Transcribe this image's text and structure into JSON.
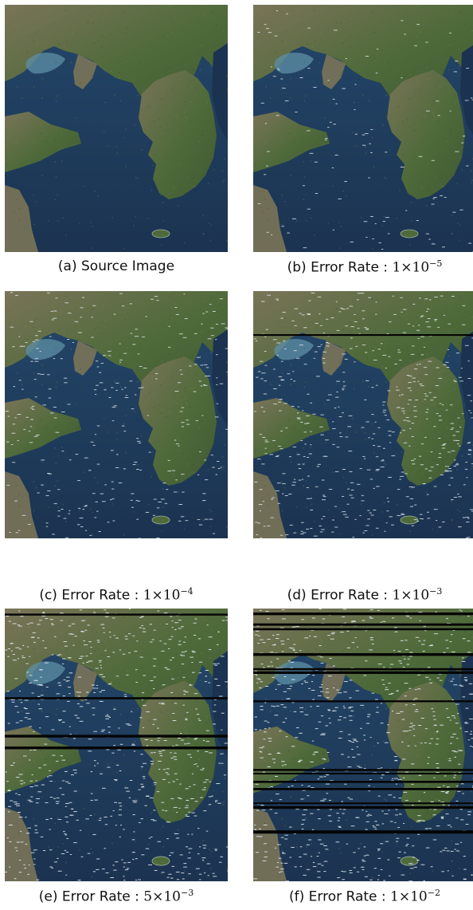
{
  "panels": [
    {
      "letter": "(a)",
      "label": "Source Image",
      "mantissa": "",
      "exponent": "",
      "artifact_lines": 0,
      "noise_level": 0
    },
    {
      "letter": "(b)",
      "label": "Error Rate :",
      "mantissa": "1",
      "exponent": "−5",
      "artifact_lines": 0,
      "noise_level": 1e-05
    },
    {
      "letter": "(c)",
      "label": "Error Rate :",
      "mantissa": "1",
      "exponent": "−4",
      "artifact_lines": 0,
      "noise_level": 0.0001
    },
    {
      "letter": "(d)",
      "label": "Error Rate :",
      "mantissa": "1",
      "exponent": "−3",
      "artifact_lines": 1,
      "noise_level": 0.001
    },
    {
      "letter": "(e)",
      "label": "Error Rate :",
      "mantissa": "5",
      "exponent": "−3",
      "artifact_lines": 4,
      "noise_level": 0.005
    },
    {
      "letter": "(f)",
      "label": "Error Rate :",
      "mantissa": "1",
      "exponent": "−2",
      "artifact_lines": 16,
      "noise_level": 0.01
    }
  ],
  "colors": {
    "sea_deep": "#1b3350",
    "sea_mid": "#24476a",
    "land_green": "#4e6a3a",
    "land_brown": "#7a7458",
    "shallow": "#5d8fa6",
    "artifact_line": "#050505",
    "noise_speck": "#e8eef4"
  }
}
